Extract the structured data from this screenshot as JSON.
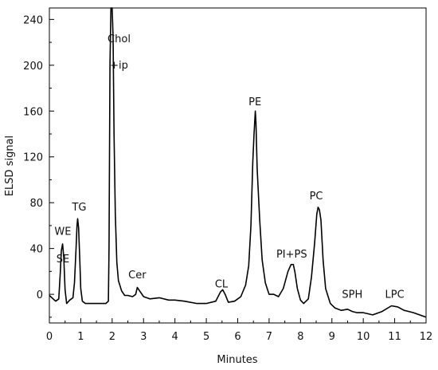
{
  "chart_data": {
    "type": "line",
    "title": "",
    "xlabel": "Minutes",
    "ylabel": "ELSD signal",
    "xlim": [
      0,
      12
    ],
    "ylim": [
      -25,
      250
    ],
    "xticks": [
      0,
      1,
      2,
      3,
      4,
      5,
      6,
      7,
      8,
      9,
      10,
      11,
      12
    ],
    "yticks": [
      0,
      40,
      80,
      120,
      160,
      200,
      240
    ],
    "grid": false,
    "legend": "none",
    "series": [
      {
        "color": "#000000",
        "x": [
          0,
          0.2,
          0.3,
          0.35,
          0.38,
          0.42,
          0.46,
          0.5,
          0.55,
          0.65,
          0.75,
          0.8,
          0.85,
          0.88,
          0.9,
          0.93,
          0.97,
          1.0,
          1.05,
          1.15,
          1.3,
          1.6,
          1.8,
          1.88,
          1.9,
          1.93,
          1.96,
          2.0,
          2.03,
          2.06,
          2.1,
          2.15,
          2.2,
          2.3,
          2.4,
          2.5,
          2.65,
          2.75,
          2.8,
          2.85,
          2.9,
          3.0,
          3.2,
          3.5,
          3.8,
          4.0,
          4.3,
          4.7,
          5.0,
          5.3,
          5.45,
          5.52,
          5.6,
          5.7,
          5.9,
          6.1,
          6.25,
          6.35,
          6.42,
          6.48,
          6.52,
          6.56,
          6.58,
          6.62,
          6.7,
          6.78,
          6.88,
          7.0,
          7.15,
          7.3,
          7.45,
          7.6,
          7.7,
          7.77,
          7.82,
          7.9,
          8.0,
          8.1,
          8.25,
          8.35,
          8.45,
          8.52,
          8.56,
          8.6,
          8.65,
          8.72,
          8.8,
          8.95,
          9.1,
          9.3,
          9.5,
          9.65,
          9.8,
          10.0,
          10.3,
          10.6,
          10.9,
          11.1,
          11.3,
          11.6,
          12.0
        ],
        "y": [
          -1,
          -6,
          -4,
          20,
          38,
          44,
          32,
          4,
          -8,
          -5,
          -3,
          10,
          40,
          60,
          66,
          58,
          30,
          5,
          -6,
          -8,
          -8,
          -8,
          -8,
          -6,
          40,
          200,
          250,
          250,
          225,
          140,
          70,
          28,
          12,
          3,
          -1,
          -1,
          -2,
          0,
          6,
          4,
          2,
          -2,
          -4,
          -3,
          -5,
          -5,
          -6,
          -8,
          -8,
          -6,
          2,
          4,
          0,
          -7,
          -6,
          -2,
          8,
          25,
          60,
          115,
          140,
          160,
          150,
          110,
          65,
          30,
          10,
          0,
          0,
          -2,
          5,
          20,
          26,
          26,
          20,
          5,
          -5,
          -8,
          -4,
          15,
          45,
          70,
          76,
          74,
          65,
          30,
          5,
          -8,
          -12,
          -14,
          -13,
          -15,
          -16,
          -16,
          -18,
          -15,
          -10,
          -11,
          -14,
          -16,
          -20
        ]
      }
    ],
    "annotations": [
      {
        "text": "WE",
        "x": 0.43,
        "y": 52
      },
      {
        "text": "SE",
        "x": 0.43,
        "y": 28
      },
      {
        "text": "TG",
        "x": 0.95,
        "y": 73
      },
      {
        "text": "Chol",
        "x": 2.22,
        "y": 220
      },
      {
        "text": "+ip",
        "x": 2.22,
        "y": 197
      },
      {
        "text": "Cer",
        "x": 2.8,
        "y": 14
      },
      {
        "text": "CL",
        "x": 5.48,
        "y": 6
      },
      {
        "text": "PE",
        "x": 6.55,
        "y": 165
      },
      {
        "text": "PI+PS",
        "x": 7.72,
        "y": 32
      },
      {
        "text": "PC",
        "x": 8.5,
        "y": 83
      },
      {
        "text": "SPH",
        "x": 9.65,
        "y": -3
      },
      {
        "text": "LPC",
        "x": 11.0,
        "y": -3
      }
    ]
  }
}
